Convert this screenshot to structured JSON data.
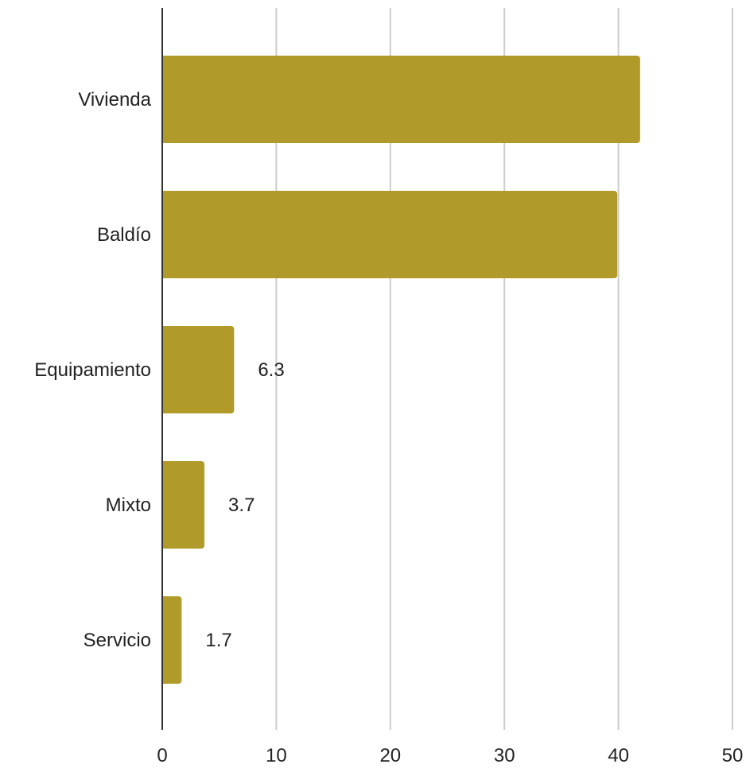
{
  "chart_data": {
    "type": "bar",
    "orientation": "horizontal",
    "categories": [
      "Vivienda",
      "Baldío",
      "Equipamiento",
      "Mixto",
      "Servicio"
    ],
    "values": [
      41.9,
      39.9,
      6.3,
      3.7,
      1.7
    ],
    "data_labels": [
      "",
      "",
      "6.3",
      "3.7",
      "1.7"
    ],
    "title": "",
    "xlabel": "",
    "ylabel": "",
    "xlim": [
      0,
      50
    ],
    "xticks": [
      0,
      10,
      20,
      30,
      40,
      50
    ],
    "grid": "vertical",
    "legend": "none",
    "colors": {
      "bar": "#B09A2A",
      "grid": "#CCCCCC",
      "axis": "#333333",
      "text": "#222222"
    }
  }
}
